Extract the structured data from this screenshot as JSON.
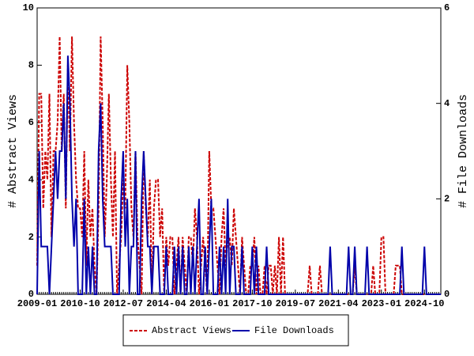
{
  "chart_data": {
    "type": "line",
    "x": [
      "2009-01",
      "2009-02",
      "2009-03",
      "2009-04",
      "2009-05",
      "2009-06",
      "2009-07",
      "2009-08",
      "2009-09",
      "2009-10",
      "2009-11",
      "2009-12",
      "2010-01",
      "2010-02",
      "2010-03",
      "2010-04",
      "2010-05",
      "2010-06",
      "2010-07",
      "2010-08",
      "2010-09",
      "2010-10",
      "2010-11",
      "2010-12",
      "2011-01",
      "2011-02",
      "2011-03",
      "2011-04",
      "2011-05",
      "2011-06",
      "2011-07",
      "2011-08",
      "2011-09",
      "2011-10",
      "2011-11",
      "2011-12",
      "2012-01",
      "2012-02",
      "2012-03",
      "2012-04",
      "2012-05",
      "2012-06",
      "2012-07",
      "2012-08",
      "2012-09",
      "2012-10",
      "2012-11",
      "2012-12",
      "2013-01",
      "2013-02",
      "2013-03",
      "2013-04",
      "2013-05",
      "2013-06",
      "2013-07",
      "2013-08",
      "2013-09",
      "2013-10",
      "2013-11",
      "2013-12",
      "2014-01",
      "2014-02",
      "2014-03",
      "2014-04",
      "2014-05",
      "2014-06",
      "2014-07",
      "2014-08",
      "2014-09",
      "2014-10",
      "2014-11",
      "2014-12",
      "2015-01",
      "2015-02",
      "2015-03",
      "2015-04",
      "2015-05",
      "2015-06",
      "2015-07",
      "2015-08",
      "2015-09",
      "2015-10",
      "2015-11",
      "2015-12",
      "2016-01",
      "2016-02",
      "2016-03",
      "2016-04",
      "2016-05",
      "2016-06",
      "2016-07",
      "2016-08",
      "2016-09",
      "2016-10",
      "2016-11",
      "2016-12",
      "2017-01",
      "2017-02",
      "2017-03",
      "2017-04",
      "2017-05",
      "2017-06",
      "2017-07",
      "2017-08",
      "2017-09",
      "2017-10",
      "2017-11",
      "2017-12",
      "2018-01",
      "2018-02",
      "2018-03",
      "2018-04",
      "2018-05",
      "2018-06",
      "2018-07",
      "2018-08",
      "2018-09",
      "2018-10",
      "2018-11",
      "2018-12",
      "2019-01",
      "2019-02",
      "2019-03",
      "2019-04",
      "2019-05",
      "2019-06",
      "2019-07",
      "2019-08",
      "2019-09",
      "2019-10",
      "2019-11",
      "2019-12",
      "2020-01",
      "2020-02",
      "2020-03",
      "2020-04",
      "2020-05",
      "2020-06",
      "2020-07",
      "2020-08",
      "2020-09",
      "2020-10",
      "2020-11",
      "2020-12",
      "2021-01",
      "2021-02",
      "2021-03",
      "2021-04",
      "2021-05",
      "2021-06",
      "2021-07",
      "2021-08",
      "2021-09",
      "2021-10",
      "2021-11",
      "2021-12",
      "2022-01",
      "2022-02",
      "2022-03",
      "2022-04",
      "2022-05",
      "2022-06",
      "2022-07",
      "2022-08",
      "2022-09",
      "2022-10",
      "2022-11",
      "2022-12",
      "2023-01",
      "2023-02",
      "2023-03",
      "2023-04",
      "2023-05",
      "2023-06",
      "2023-07",
      "2023-08",
      "2023-09",
      "2023-10",
      "2023-11",
      "2023-12",
      "2024-01",
      "2024-02",
      "2024-03",
      "2024-04",
      "2024-05",
      "2024-06",
      "2024-07",
      "2024-08",
      "2024-09",
      "2024-10",
      "2024-11",
      "2024-12",
      "2025-01",
      "2025-02",
      "2025-03",
      "2025-04",
      "2025-05",
      "2025-06"
    ],
    "series": [
      {
        "name": "Abstract Views",
        "color": "#cc0000",
        "dash": true,
        "values": [
          1,
          7,
          7,
          3,
          5,
          4,
          7,
          2,
          5,
          5,
          6,
          9,
          5,
          7,
          3,
          8,
          5,
          9,
          6,
          4,
          3,
          3,
          2,
          5,
          1,
          4,
          2,
          3,
          1,
          0,
          3,
          9,
          6,
          2,
          4,
          7,
          4,
          2,
          5,
          0,
          1,
          2,
          4,
          3,
          8,
          6,
          3,
          2,
          5,
          2,
          1,
          0,
          5,
          3,
          2,
          4,
          0,
          3,
          4,
          4,
          2,
          3,
          0,
          2,
          1,
          2,
          2,
          0,
          1,
          2,
          0,
          2,
          1,
          0,
          2,
          2,
          1,
          3,
          2,
          0,
          1,
          2,
          1,
          0,
          5,
          3,
          3,
          2,
          1,
          0,
          2,
          3,
          1,
          2,
          2,
          1,
          3,
          2,
          1,
          0,
          2,
          1,
          0,
          0,
          1,
          1,
          2,
          0,
          1,
          0,
          0,
          1,
          0,
          1,
          1,
          0,
          1,
          0,
          2,
          0,
          2,
          0,
          0,
          0,
          0,
          0,
          0,
          0,
          0,
          0,
          0,
          0,
          0,
          1,
          0,
          0,
          0,
          0,
          1,
          0,
          0,
          0,
          0,
          0,
          0,
          0,
          0,
          0,
          0,
          0,
          0,
          0,
          0,
          0,
          0,
          1,
          0,
          0,
          0,
          0,
          0,
          0,
          0,
          0,
          1,
          0,
          0,
          0,
          2,
          2,
          0,
          0,
          0,
          0,
          0,
          1,
          1,
          1,
          0,
          0,
          0,
          0,
          0,
          0,
          0,
          0,
          0,
          0,
          0,
          0,
          0,
          0,
          0,
          0,
          0,
          0,
          0,
          0
        ]
      },
      {
        "name": "File Downloads",
        "color": "#0000aa",
        "dash": false,
        "axis": "y2",
        "values": [
          0,
          3,
          1,
          1,
          1,
          1,
          0,
          1,
          2,
          3,
          2,
          3,
          3,
          4,
          2,
          5,
          4,
          2,
          1,
          2,
          0,
          0,
          0,
          2,
          0,
          1,
          0,
          1,
          0,
          0,
          3,
          4,
          2,
          1,
          1,
          1,
          1,
          0,
          0,
          0,
          0,
          2,
          3,
          1,
          2,
          0,
          1,
          1,
          3,
          0,
          0,
          2,
          3,
          2,
          1,
          1,
          0,
          1,
          1,
          1,
          0,
          0,
          0,
          1,
          0,
          0,
          0,
          1,
          0,
          1,
          0,
          1,
          0,
          0,
          1,
          0,
          1,
          0,
          1,
          2,
          0,
          0,
          1,
          0,
          1,
          2,
          0,
          0,
          0,
          1,
          0,
          1,
          0,
          2,
          0,
          1,
          1,
          0,
          0,
          0,
          1,
          0,
          0,
          0,
          0,
          1,
          0,
          1,
          0,
          0,
          0,
          0,
          1,
          0,
          0,
          0,
          0,
          0,
          0,
          0,
          0,
          0,
          0,
          0,
          0,
          0,
          0,
          0,
          0,
          0,
          0,
          0,
          0,
          0,
          0,
          0,
          0,
          0,
          0,
          0,
          0,
          0,
          0,
          1,
          0,
          0,
          0,
          0,
          0,
          0,
          0,
          0,
          1,
          0,
          0,
          1,
          0,
          0,
          0,
          0,
          0,
          1,
          0,
          0,
          0,
          0,
          0,
          0,
          0,
          0,
          0,
          0,
          0,
          0,
          0,
          0,
          0,
          0,
          1,
          0,
          0,
          0,
          0,
          0,
          0,
          0,
          0,
          0,
          0,
          1,
          0,
          0,
          0,
          0,
          0,
          0,
          0,
          0
        ]
      }
    ],
    "xticks": [
      "2009-01",
      "2010-10",
      "2012-07",
      "2014-04",
      "2016-01",
      "2017-10",
      "2019-07",
      "2021-04",
      "2023-01",
      "2024-10"
    ],
    "y_label": "# Abstract Views",
    "y2_label": "# File Downloads",
    "ylim": [
      0,
      10
    ],
    "yticks": [
      0,
      2,
      4,
      6,
      8,
      10
    ],
    "y2lim": [
      0,
      6
    ],
    "y2ticks": [
      0,
      2,
      4,
      6
    ],
    "legend": "bottom"
  }
}
